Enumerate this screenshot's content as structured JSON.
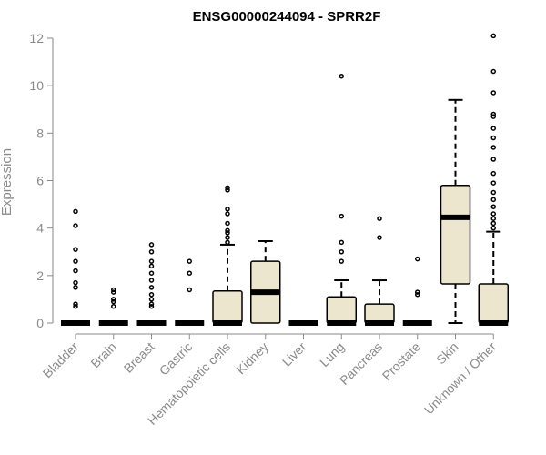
{
  "chart_data": {
    "type": "box",
    "title": "ENSG00000244094 - SPRR2F",
    "xlabel": "",
    "ylabel": "Expression",
    "ylim": [
      0,
      12
    ],
    "yticks": [
      0,
      2,
      4,
      6,
      8,
      10,
      12
    ],
    "grid": false,
    "box_color": "#ede6cf",
    "categories": [
      "Bladder",
      "Brain",
      "Breast",
      "Gastric",
      "Hematopoietic cells",
      "Kidney",
      "Liver",
      "Lung",
      "Pancreas",
      "Prostate",
      "Skin",
      "Unknown / Other"
    ],
    "boxes": [
      {
        "q1": 0,
        "median": 0,
        "q3": 0,
        "whisker_low": 0,
        "whisker_high": 0,
        "outliers": [
          0.7,
          0.8,
          1.5,
          1.7,
          2.2,
          2.6,
          3.1,
          4.1,
          4.7
        ]
      },
      {
        "q1": 0,
        "median": 0,
        "q3": 0,
        "whisker_low": 0,
        "whisker_high": 0,
        "outliers": [
          0.7,
          0.9,
          1.0,
          1.3,
          1.4
        ]
      },
      {
        "q1": 0,
        "median": 0,
        "q3": 0,
        "whisker_low": 0,
        "whisker_high": 0,
        "outliers": [
          0.7,
          0.8,
          1.0,
          1.2,
          1.5,
          1.8,
          2.1,
          2.4,
          2.6,
          3.0,
          3.3
        ]
      },
      {
        "q1": 0,
        "median": 0,
        "q3": 0,
        "whisker_low": 0,
        "whisker_high": 0,
        "outliers": [
          1.4,
          2.1,
          2.6
        ]
      },
      {
        "q1": 0,
        "median": 0,
        "q3": 1.35,
        "whisker_low": 0,
        "whisker_high": 3.3,
        "outliers": [
          3.4,
          3.6,
          3.8,
          3.9,
          4.2,
          4.6,
          4.8,
          5.6,
          5.7
        ]
      },
      {
        "q1": 0,
        "median": 1.3,
        "q3": 2.6,
        "whisker_low": 0,
        "whisker_high": 3.45,
        "outliers": []
      },
      {
        "q1": 0,
        "median": 0,
        "q3": 0,
        "whisker_low": 0,
        "whisker_high": 0,
        "outliers": []
      },
      {
        "q1": 0,
        "median": 0,
        "q3": 1.1,
        "whisker_low": 0,
        "whisker_high": 1.8,
        "outliers": [
          2.6,
          3.0,
          3.4,
          4.5,
          10.4
        ]
      },
      {
        "q1": 0,
        "median": 0,
        "q3": 0.8,
        "whisker_low": 0,
        "whisker_high": 1.8,
        "outliers": [
          3.6,
          4.4
        ]
      },
      {
        "q1": 0,
        "median": 0,
        "q3": 0,
        "whisker_low": 0,
        "whisker_high": 0,
        "outliers": [
          1.2,
          1.3,
          2.7
        ]
      },
      {
        "q1": 1.65,
        "median": 4.45,
        "q3": 5.8,
        "whisker_low": 0,
        "whisker_high": 9.4,
        "outliers": []
      },
      {
        "q1": 0,
        "median": 0,
        "q3": 1.65,
        "whisker_low": 0,
        "whisker_high": 3.85,
        "outliers": [
          4.0,
          4.2,
          4.4,
          4.6,
          4.9,
          5.2,
          5.5,
          5.9,
          6.3,
          6.9,
          7.4,
          7.8,
          8.2,
          8.7,
          8.8,
          9.7,
          10.6,
          12.1
        ]
      }
    ]
  }
}
